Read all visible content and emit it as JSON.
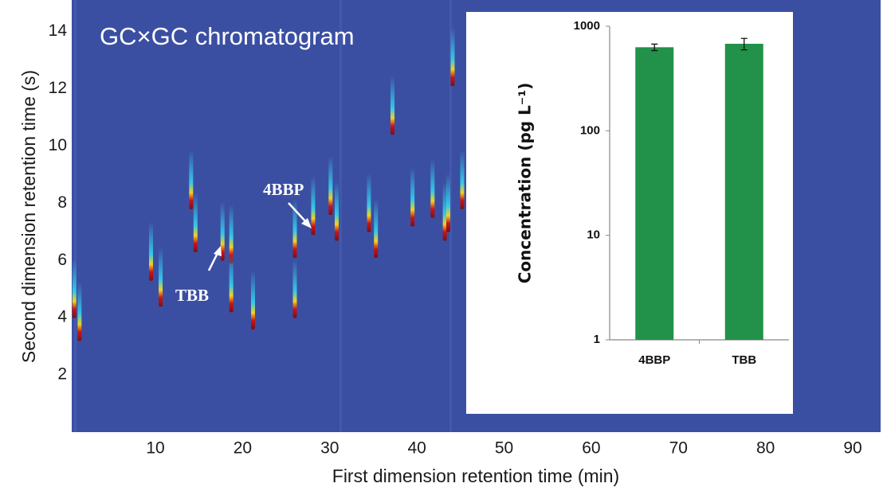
{
  "chart_data": [
    {
      "type": "chromatogram",
      "title": "GC×GC chromatogram",
      "x_label": "First dimension retention time (min)",
      "y_label": "Second dimension retention time (s)",
      "background": "#3b4fa2",
      "xlim": [
        0.4,
        93.2
      ],
      "xticks": [
        10,
        20,
        30,
        40,
        50,
        60,
        70,
        80,
        90
      ],
      "ylim": [
        0,
        15.1
      ],
      "yticks": [
        2,
        4,
        6,
        8,
        10,
        12,
        14
      ],
      "peaks": {
        "x": [
          0.7,
          1.3,
          9.5,
          10.6,
          14.1,
          14.6,
          17.7,
          18.7,
          18.7,
          21.2,
          26.0,
          26.0,
          28.1,
          30.1,
          30.8,
          34.5,
          35.3,
          37.2,
          39.5,
          41.8,
          43.2,
          43.6,
          44.1,
          45.2
        ],
        "y": [
          4.1,
          3.3,
          5.4,
          4.5,
          7.9,
          6.4,
          6.1,
          6.0,
          4.3,
          3.7,
          6.2,
          4.1,
          7.0,
          7.7,
          6.8,
          7.1,
          6.2,
          10.5,
          7.3,
          7.6,
          6.8,
          7.1,
          12.2,
          7.9
        ]
      },
      "annotations": [
        "4BBP",
        "TBB"
      ]
    },
    {
      "type": "bar",
      "y_label": "Concentration (pg L⁻¹)",
      "categories": [
        "4BBP",
        "TBB"
      ],
      "values": [
        630,
        680
      ],
      "errors": [
        45,
        85
      ],
      "color": "#22914a",
      "log_y": true,
      "ylim": [
        1,
        1000
      ],
      "yticks": [
        1,
        10,
        100,
        1000
      ]
    }
  ]
}
